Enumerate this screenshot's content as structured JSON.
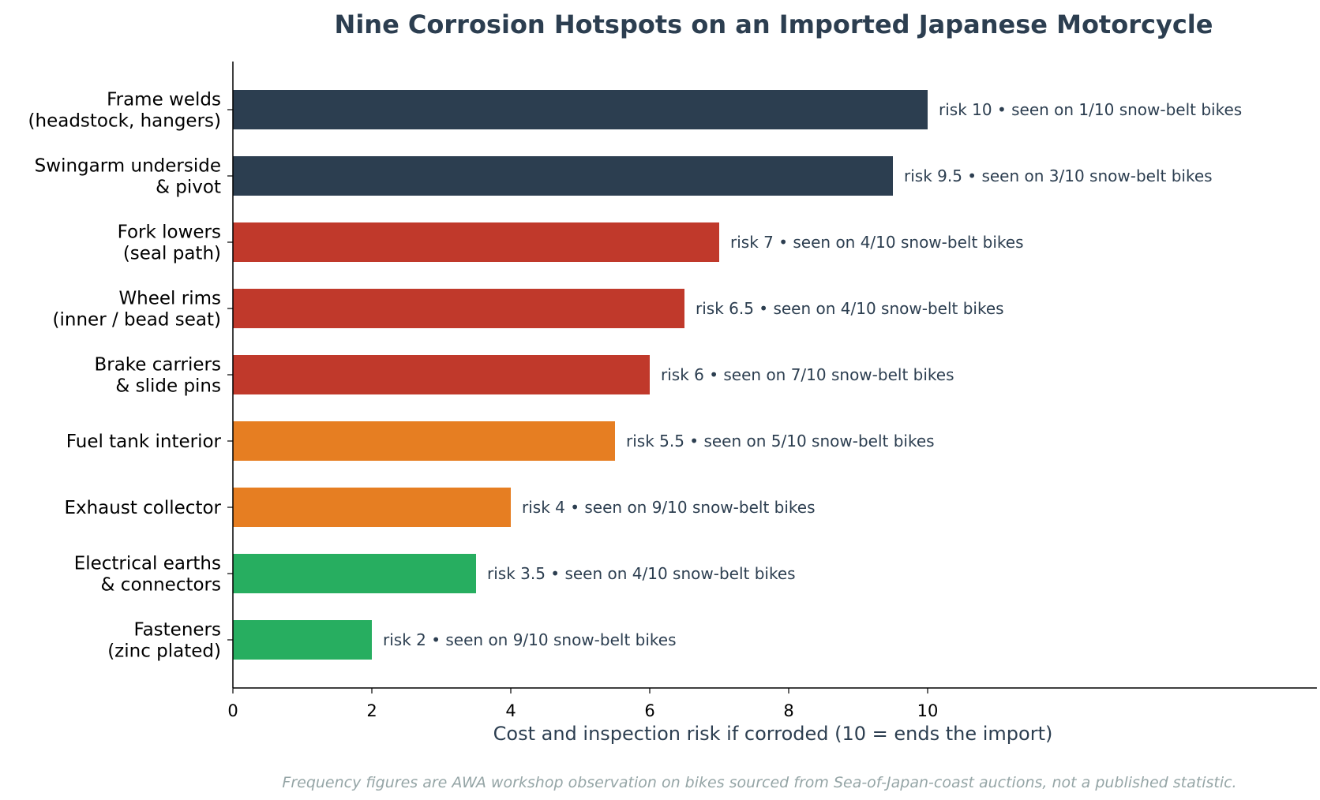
{
  "chart_data": {
    "type": "bar",
    "orientation": "horizontal",
    "title": "Nine Corrosion Hotspots on an Imported Japanese Motorcycle",
    "xlabel": "Cost and inspection risk if corroded (10 = ends the import)",
    "ylabel": "",
    "xlim": [
      0,
      15.6
    ],
    "xticks": [
      "0",
      "2",
      "4",
      "6",
      "8",
      "10"
    ],
    "grid": false,
    "categories": [
      [
        "Frame welds",
        "(headstock, hangers)"
      ],
      [
        "Swingarm underside",
        "& pivot"
      ],
      [
        "Fork lowers",
        "(seal path)"
      ],
      [
        "Wheel rims",
        "(inner / bead seat)"
      ],
      [
        "Brake carriers",
        "& slide pins"
      ],
      [
        "Fuel tank interior"
      ],
      [
        "Exhaust collector"
      ],
      [
        "Electrical earths",
        "& connectors"
      ],
      [
        "Fasteners",
        "(zinc plated)"
      ]
    ],
    "values": [
      10,
      9.5,
      7,
      6.5,
      6,
      5.5,
      4,
      3.5,
      2
    ],
    "data_labels": [
      "risk 10  •  seen on 1/10 snow-belt bikes",
      "risk 9.5  •  seen on 3/10 snow-belt bikes",
      "risk 7  •  seen on 4/10 snow-belt bikes",
      "risk 6.5  •  seen on 4/10 snow-belt bikes",
      "risk 6  •  seen on 7/10 snow-belt bikes",
      "risk 5.5  •  seen on 5/10 snow-belt bikes",
      "risk 4  •  seen on 9/10 snow-belt bikes",
      "risk 3.5  •  seen on 4/10 snow-belt bikes",
      "risk 2  •  seen on 9/10 snow-belt bikes"
    ],
    "bar_colors": [
      "#2c3e50",
      "#2c3e50",
      "#c0392b",
      "#c0392b",
      "#c0392b",
      "#e67e22",
      "#e67e22",
      "#27ae60",
      "#27ae60"
    ],
    "footnote": "Frequency figures are AWA workshop observation on bikes sourced from Sea-of-Japan-coast auctions, not a published statistic."
  }
}
